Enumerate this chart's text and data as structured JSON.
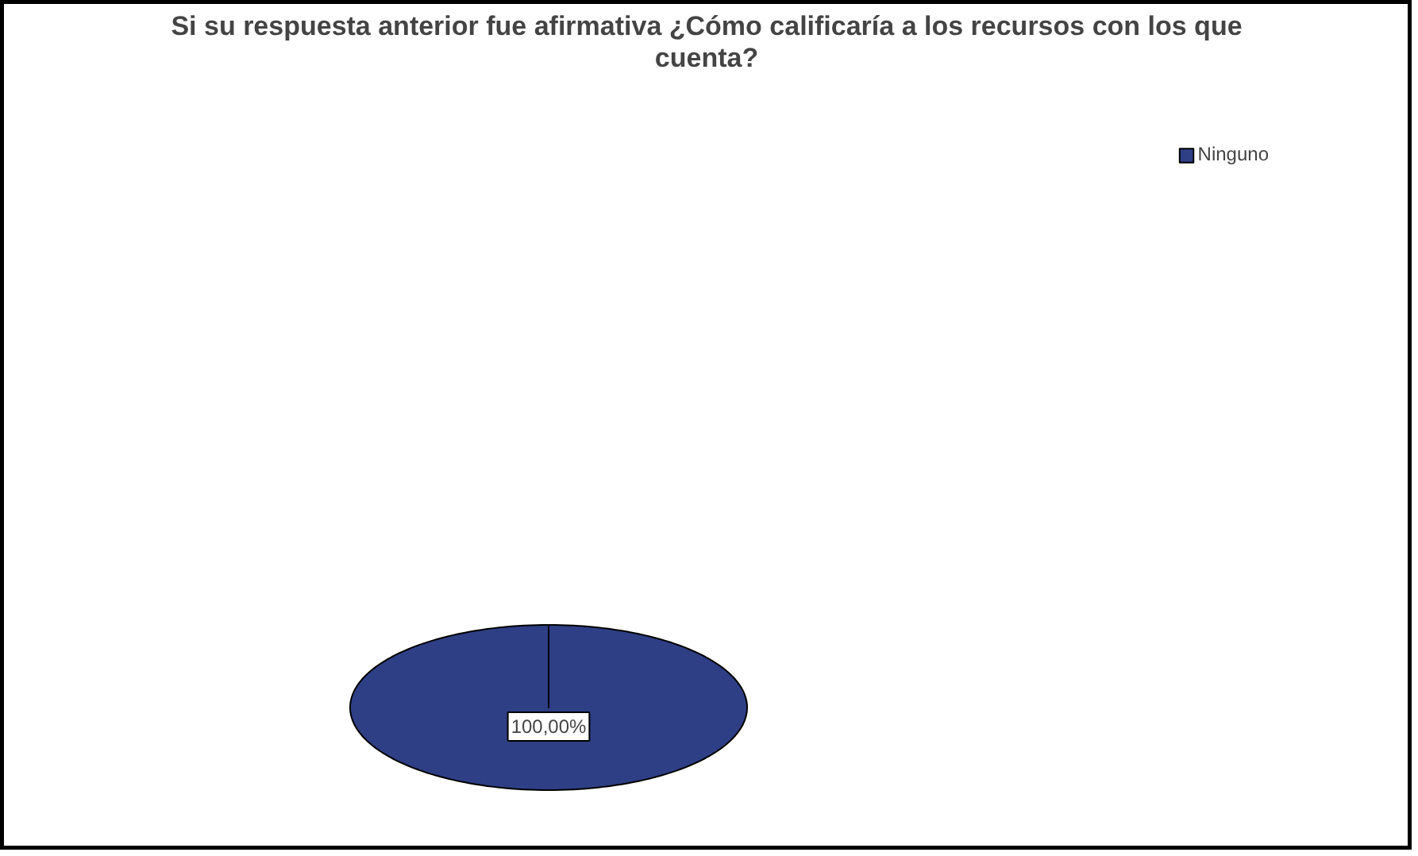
{
  "chart_data": {
    "type": "pie",
    "title": "Si su respuesta anterior fue afirmativa ¿Cómo calificaría a los recursos con los que cuenta?",
    "categories": [
      "Ninguno"
    ],
    "values": [
      100
    ],
    "colors": [
      "#2e3f86"
    ],
    "value_labels": [
      "100,00%"
    ],
    "legend": "top right"
  }
}
